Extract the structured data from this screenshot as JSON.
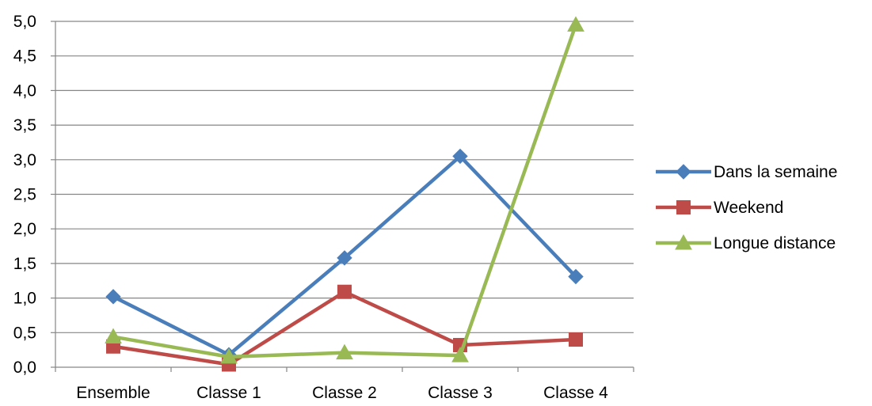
{
  "chart_data": {
    "type": "line",
    "categories": [
      "Ensemble",
      "Classe 1",
      "Classe 2",
      "Classe 3",
      "Classe 4"
    ],
    "y_tick_labels": [
      "0,0",
      "0,5",
      "1,0",
      "1,5",
      "2,0",
      "2,5",
      "3,0",
      "3,5",
      "4,0",
      "4,5",
      "5,0"
    ],
    "ylim": [
      0,
      5
    ],
    "grid": true,
    "legend_position": "right",
    "series": [
      {
        "name": "Dans la semaine",
        "values": [
          1.02,
          0.18,
          1.58,
          3.05,
          1.31
        ],
        "color": "#4a7ebb",
        "marker": "diamond"
      },
      {
        "name": "Weekend",
        "values": [
          0.3,
          0.04,
          1.09,
          0.32,
          0.4
        ],
        "color": "#be4b48",
        "marker": "square"
      },
      {
        "name": "Longue distance",
        "values": [
          0.44,
          0.15,
          0.21,
          0.17,
          4.95
        ],
        "color": "#98b954",
        "marker": "triangle"
      }
    ]
  }
}
